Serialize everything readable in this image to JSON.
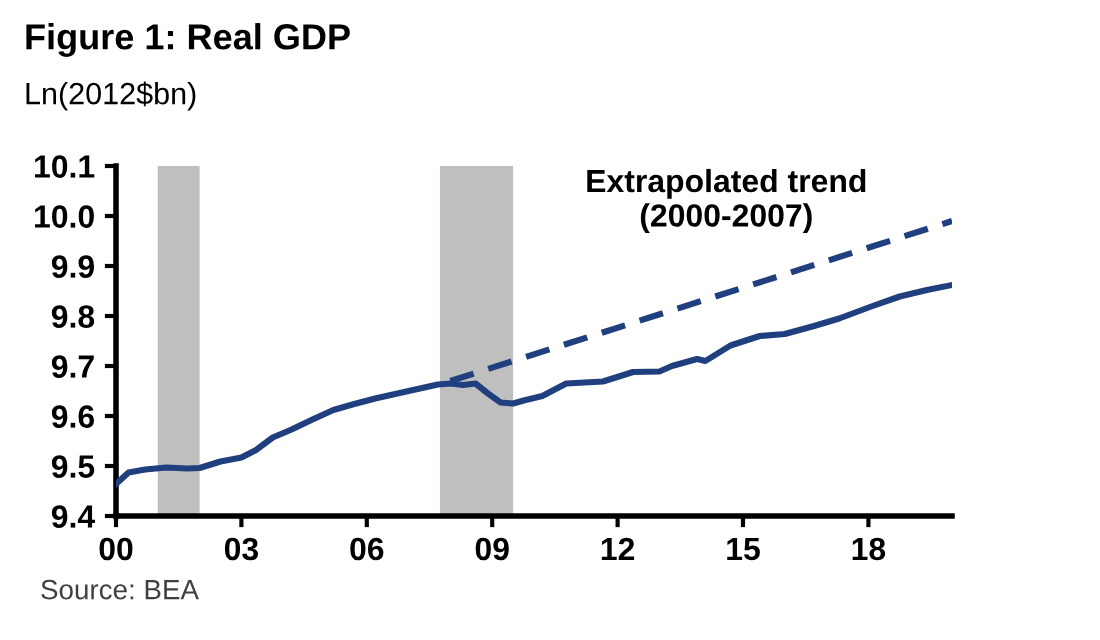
{
  "chart_data": {
    "type": "line",
    "title": "Figure 1: Real GDP",
    "ylabel": "Ln(2012$bn)",
    "annotations": [
      "Extrapolated trend\n(2000-2007)",
      "Source: BEA"
    ],
    "series": [
      {
        "color": "#1f3f7f",
        "line_style": "solid",
        "x": [
          2000.0,
          2000.3,
          2000.7,
          2001.2,
          2001.7,
          2002.0,
          2002.5,
          2003.0,
          2003.35,
          2003.75,
          2004.2,
          2004.7,
          2005.2,
          2005.7,
          2006.2,
          2007.0,
          2007.7,
          2008.0,
          2008.3,
          2008.6,
          2008.9,
          2009.2,
          2009.5,
          2009.8,
          2010.2,
          2010.77,
          2011.65,
          2012.37,
          2013.0,
          2013.3,
          2013.9,
          2014.1,
          2014.7,
          2015.4,
          2016.0,
          2016.7,
          2017.3,
          2018.1,
          2018.75,
          2019.4,
          2020.0
        ],
        "values": [
          9.464,
          9.487,
          9.493,
          9.497,
          9.495,
          9.496,
          9.509,
          9.517,
          9.532,
          9.557,
          9.573,
          9.593,
          9.612,
          9.624,
          9.635,
          9.65,
          9.663,
          9.665,
          9.662,
          9.665,
          9.645,
          9.627,
          9.625,
          9.632,
          9.64,
          9.665,
          9.669,
          9.688,
          9.689,
          9.7,
          9.714,
          9.71,
          9.741,
          9.76,
          9.764,
          9.78,
          9.795,
          9.82,
          9.839,
          9.852,
          9.862
        ]
      },
      {
        "color": "#1f3f7f",
        "line_style": "dashed",
        "x": [
          2008.0,
          2020.0
        ],
        "values": [
          9.67,
          9.99
        ]
      }
    ],
    "xlim": [
      2000,
      2020
    ],
    "xticks": [
      {
        "value": 2000,
        "label": "00"
      },
      {
        "value": 2003,
        "label": "03"
      },
      {
        "value": 2006,
        "label": "06"
      },
      {
        "value": 2009,
        "label": "09"
      },
      {
        "value": 2012,
        "label": "12"
      },
      {
        "value": 2015,
        "label": "15"
      },
      {
        "value": 2018,
        "label": "18"
      }
    ],
    "ylim": [
      9.4,
      10.1
    ],
    "yticks": [
      {
        "value": 9.4,
        "label": "9.4"
      },
      {
        "value": 9.5,
        "label": "9.5"
      },
      {
        "value": 9.6,
        "label": "9.6"
      },
      {
        "value": 9.7,
        "label": "9.7"
      },
      {
        "value": 9.8,
        "label": "9.8"
      },
      {
        "value": 9.9,
        "label": "9.9"
      },
      {
        "value": 10.0,
        "label": "10.0"
      },
      {
        "value": 10.1,
        "label": "10.1"
      }
    ],
    "bands": [
      {
        "axis": "x",
        "from": 2001.0,
        "to": 2002.0,
        "color": "#bfbfbf"
      },
      {
        "axis": "x",
        "from": 2007.75,
        "to": 2009.5,
        "color": "#bfbfbf"
      }
    ],
    "grid": false,
    "legend": false,
    "marker": "none"
  }
}
